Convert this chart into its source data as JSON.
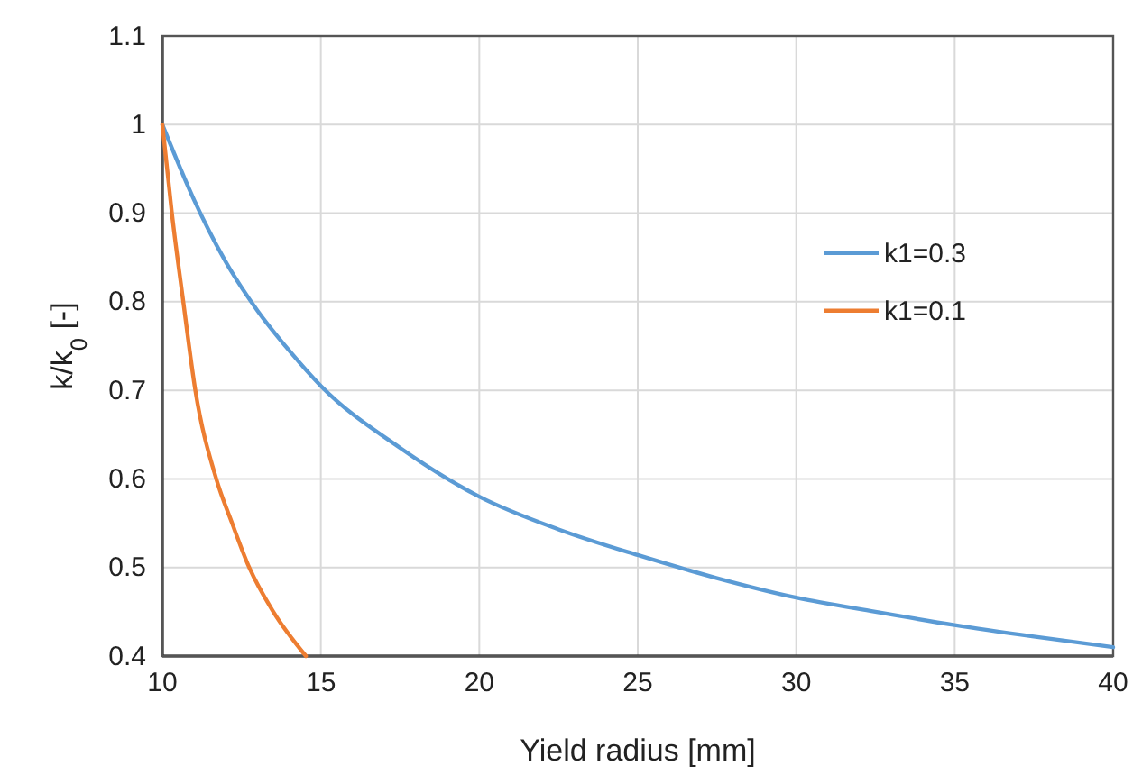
{
  "chart_data": {
    "type": "line",
    "xlabel": "Yield radius [mm]",
    "ylabel": "k/k$_{0}$ [-]",
    "xlim": [
      10,
      40
    ],
    "xticks": [
      10,
      15,
      20,
      25,
      30,
      35,
      40
    ],
    "ylim": [
      0.4,
      1.1
    ],
    "yticks": [
      0.4,
      0.5,
      0.6,
      0.7,
      0.8,
      0.9,
      1,
      1.1
    ],
    "grid": true,
    "legend": "right",
    "marker": "none",
    "line_style": "solid",
    "series": [
      {
        "name": "k1=0.3",
        "color": "#5b9bd5",
        "x": [
          10,
          11,
          12,
          13,
          14,
          15,
          17.5,
          20,
          22.5,
          25,
          27.5,
          30,
          32.5,
          35,
          37.5,
          40
        ],
        "values": [
          1,
          0.915,
          0.845,
          0.79,
          0.745,
          0.705,
          0.635,
          0.58,
          0.543,
          0.514,
          0.488,
          0.466,
          0.45,
          0.435,
          0.422,
          0.41
        ]
      },
      {
        "name": "k1=0.1",
        "color": "#ed7d31",
        "x": [
          10,
          10.3,
          10.66,
          11.04,
          11.7,
          12.2,
          12.74,
          13.5,
          14.53
        ],
        "values": [
          1,
          0.9,
          0.8,
          0.7,
          0.6,
          0.55,
          0.5,
          0.45,
          0.4
        ]
      }
    ]
  }
}
